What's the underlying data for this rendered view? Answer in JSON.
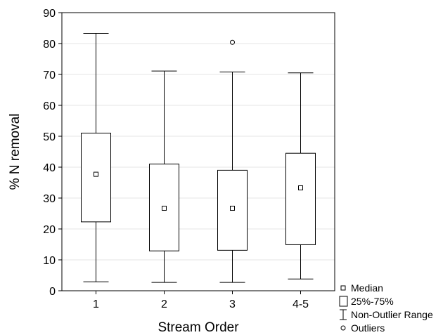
{
  "chart_data": {
    "type": "box",
    "xlabel": "Stream Order",
    "ylabel": "% N removal",
    "ylim": [
      0,
      90
    ],
    "yticks": [
      0,
      10,
      20,
      30,
      40,
      50,
      60,
      70,
      80,
      90
    ],
    "grid": true,
    "legend_position": "bottom-right",
    "categories": [
      "1",
      "2",
      "3",
      "4-5"
    ],
    "boxes": [
      {
        "category": "1",
        "median": 37.7,
        "q1": 22.3,
        "q3": 51.0,
        "whisker_low": 2.9,
        "whisker_high": 83.3,
        "outliers": []
      },
      {
        "category": "2",
        "median": 26.7,
        "q1": 12.9,
        "q3": 41.0,
        "whisker_low": 2.7,
        "whisker_high": 71.1,
        "outliers": []
      },
      {
        "category": "3",
        "median": 26.7,
        "q1": 13.1,
        "q3": 39.0,
        "whisker_low": 2.7,
        "whisker_high": 70.8,
        "outliers": [
          80.4
        ]
      },
      {
        "category": "4-5",
        "median": 33.3,
        "q1": 14.9,
        "q3": 44.5,
        "whisker_low": 3.8,
        "whisker_high": 70.5,
        "outliers": []
      }
    ],
    "legend": [
      {
        "symbol": "median",
        "label": "Median"
      },
      {
        "symbol": "box",
        "label": "25%-75%"
      },
      {
        "symbol": "range",
        "label": "Non-Outlier Range"
      },
      {
        "symbol": "outlier",
        "label": "Outliers"
      }
    ]
  }
}
